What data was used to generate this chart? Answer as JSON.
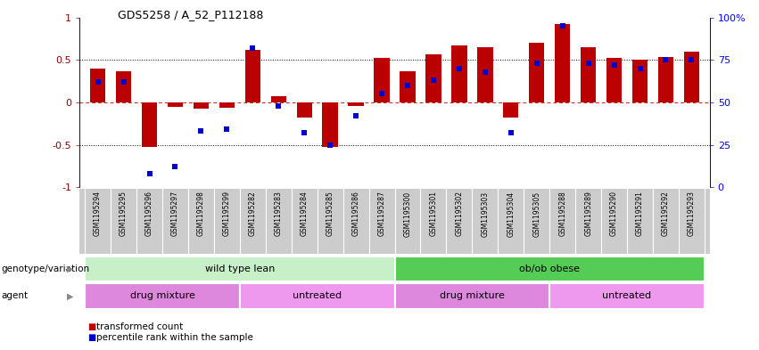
{
  "title": "GDS5258 / A_52_P112188",
  "samples": [
    "GSM1195294",
    "GSM1195295",
    "GSM1195296",
    "GSM1195297",
    "GSM1195298",
    "GSM1195299",
    "GSM1195282",
    "GSM1195283",
    "GSM1195284",
    "GSM1195285",
    "GSM1195286",
    "GSM1195287",
    "GSM1195300",
    "GSM1195301",
    "GSM1195302",
    "GSM1195303",
    "GSM1195304",
    "GSM1195305",
    "GSM1195288",
    "GSM1195289",
    "GSM1195290",
    "GSM1195291",
    "GSM1195292",
    "GSM1195293"
  ],
  "bar_values": [
    0.4,
    0.37,
    -0.52,
    -0.05,
    -0.07,
    -0.06,
    0.62,
    0.07,
    -0.18,
    -0.52,
    -0.04,
    0.52,
    0.37,
    0.57,
    0.67,
    0.65,
    -0.18,
    0.7,
    0.92,
    0.65,
    0.52,
    0.5,
    0.53,
    0.6
  ],
  "dot_values_pct": [
    62,
    62,
    8,
    12,
    33,
    34,
    82,
    48,
    32,
    25,
    42,
    55,
    60,
    63,
    70,
    68,
    32,
    73,
    95,
    73,
    72,
    70,
    75,
    75
  ],
  "bar_color": "#bb0000",
  "dot_color": "#0000cc",
  "ylim_left": [
    -1.0,
    1.0
  ],
  "yticks_left": [
    -1.0,
    -0.5,
    0.0,
    0.5,
    1.0
  ],
  "yticks_right_pct": [
    0,
    25,
    50,
    75,
    100
  ],
  "hlines": [
    0.5,
    -0.5
  ],
  "zero_line_color": "#cc2222",
  "dot_line_color": "black",
  "genotype_groups": [
    {
      "label": "wild type lean",
      "start": 0,
      "end": 11,
      "color": "#c8f0c8"
    },
    {
      "label": "ob/ob obese",
      "start": 12,
      "end": 23,
      "color": "#55cc55"
    }
  ],
  "agent_groups": [
    {
      "label": "drug mixture",
      "start": 0,
      "end": 5,
      "color": "#dd88dd"
    },
    {
      "label": "untreated",
      "start": 6,
      "end": 11,
      "color": "#ee99ee"
    },
    {
      "label": "drug mixture",
      "start": 12,
      "end": 17,
      "color": "#dd88dd"
    },
    {
      "label": "untreated",
      "start": 18,
      "end": 23,
      "color": "#ee99ee"
    }
  ],
  "legend_items": [
    {
      "label": "transformed count",
      "color": "#bb0000"
    },
    {
      "label": "percentile rank within the sample",
      "color": "#0000cc"
    }
  ],
  "xtick_bg": "#cccccc",
  "xtick_sep": "#ffffff"
}
